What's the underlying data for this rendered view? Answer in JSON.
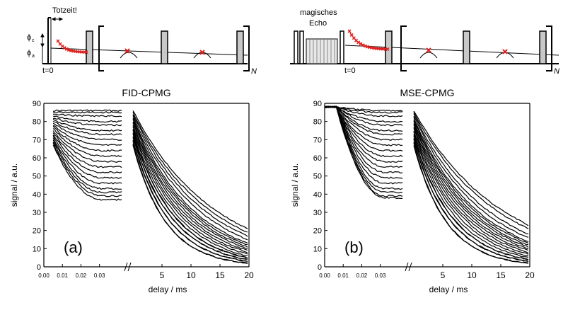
{
  "diagram": {
    "left": {
      "dead_time_label": "Totzeit!",
      "phi_c": "ϕ",
      "phi_c_sub": "c",
      "phi_a": "ϕ",
      "phi_a_sub": "a",
      "t0": "t=0",
      "repeat": "N"
    },
    "right": {
      "mse_label_1": "magisches",
      "mse_label_2": "Echo",
      "t0": "t=0",
      "repeat": "N"
    }
  },
  "chart_data": [
    {
      "type": "line",
      "title": "FID-CPMG",
      "panel_label": "(a)",
      "ylabel": "signal  /  a.u.",
      "xlabel": "delay  /  ms",
      "ylim": [
        0,
        90
      ],
      "yticks": [
        0,
        10,
        20,
        30,
        40,
        50,
        60,
        70,
        80,
        90
      ],
      "x_short": {
        "xlim": [
          0.0,
          0.045
        ],
        "ticks": [
          "0.00",
          "0.01",
          "0.02",
          "0.03"
        ]
      },
      "x_long": {
        "xlim": [
          0,
          20
        ],
        "ticks": [
          "5",
          "10",
          "15",
          "20"
        ]
      },
      "axis_break": true,
      "fid_series": {
        "count": 20,
        "plateau_start": [
          86,
          85,
          84,
          83,
          82,
          81,
          80,
          79,
          78,
          77,
          76,
          75,
          74,
          73,
          72,
          71,
          70,
          69,
          68,
          67
        ],
        "plateau_end": [
          86,
          85,
          83,
          80,
          78,
          75,
          73,
          70,
          67,
          64,
          61,
          58,
          55,
          52,
          49,
          46,
          43,
          41,
          39,
          37
        ]
      },
      "cpmg_series": {
        "count": 20,
        "start": [
          86,
          85,
          84,
          83,
          82,
          81,
          80,
          79,
          78,
          77,
          76,
          75,
          74,
          73,
          72,
          71,
          70,
          69,
          68,
          67
        ],
        "end": [
          21,
          19,
          17,
          15,
          13,
          12,
          11,
          10,
          9,
          8,
          7,
          6,
          5,
          5,
          4,
          4,
          3,
          3,
          2,
          2
        ]
      }
    },
    {
      "type": "line",
      "title": "MSE-CPMG",
      "panel_label": "(b)",
      "ylabel": "signal  /  a.u.",
      "xlabel": "delay  /  ms",
      "ylim": [
        0,
        90
      ],
      "yticks": [
        0,
        10,
        20,
        30,
        40,
        50,
        60,
        70,
        80,
        90
      ],
      "x_short": {
        "xlim": [
          0.0,
          0.045
        ],
        "ticks": [
          "0.00",
          "0.01",
          "0.02",
          "0.03"
        ]
      },
      "x_long": {
        "xlim": [
          0,
          20
        ],
        "ticks": [
          "5",
          "10",
          "15",
          "20"
        ]
      },
      "axis_break": true,
      "fid_series": {
        "count": 20,
        "plateau_start": [
          88,
          88,
          88,
          88,
          88,
          88,
          88,
          88,
          88,
          88,
          88,
          88,
          88,
          88,
          88,
          88,
          88,
          88,
          88,
          88
        ],
        "plateau_end": [
          86,
          85,
          83,
          80,
          78,
          75,
          73,
          70,
          67,
          64,
          61,
          58,
          55,
          52,
          49,
          46,
          43,
          41,
          39,
          38
        ]
      },
      "cpmg_series": {
        "count": 20,
        "start": [
          86,
          85,
          84,
          83,
          82,
          81,
          80,
          79,
          78,
          77,
          76,
          75,
          74,
          73,
          72,
          71,
          70,
          69,
          68,
          67
        ],
        "end": [
          23,
          21,
          18,
          16,
          14,
          13,
          12,
          11,
          10,
          9,
          8,
          7,
          6,
          5,
          4,
          4,
          3,
          3,
          2,
          2
        ]
      }
    }
  ]
}
